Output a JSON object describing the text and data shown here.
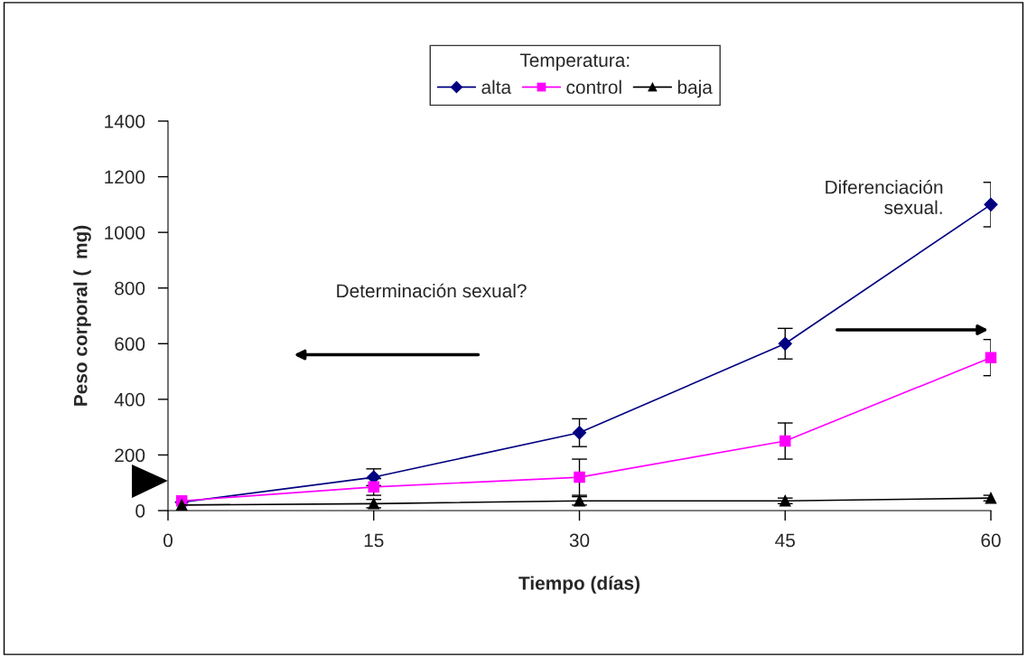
{
  "chart_data": {
    "type": "line",
    "xlabel": "Tiempo (días)",
    "ylabel": "Peso corporal (  mg)",
    "legend_title": "Temperatura:",
    "x": [
      1,
      15,
      30,
      45,
      60
    ],
    "series": [
      {
        "name": "alta",
        "color": "#000080",
        "marker": "diamond",
        "values": [
          30,
          120,
          280,
          600,
          1100
        ],
        "errors": [
          null,
          30,
          50,
          55,
          80
        ]
      },
      {
        "name": "control",
        "color": "#ff00ff",
        "marker": "square",
        "values": [
          35,
          85,
          120,
          250,
          550
        ],
        "errors": [
          null,
          30,
          65,
          65,
          65
        ]
      },
      {
        "name": "baja",
        "color": "#000000",
        "marker": "triangle",
        "values": [
          20,
          25,
          35,
          35,
          45
        ],
        "errors": [
          null,
          15,
          15,
          10,
          10
        ]
      }
    ],
    "annotations": [
      "Determinación sexual?",
      "Diferenciación\nsexual."
    ],
    "xlim": [
      0,
      60
    ],
    "ylim": [
      0,
      1400
    ],
    "xticks": [
      0,
      15,
      30,
      45,
      60
    ],
    "yticks": [
      0,
      200,
      400,
      600,
      800,
      1000,
      1200,
      1400
    ],
    "legend": "top",
    "grid": false,
    "line_style": "solid"
  }
}
